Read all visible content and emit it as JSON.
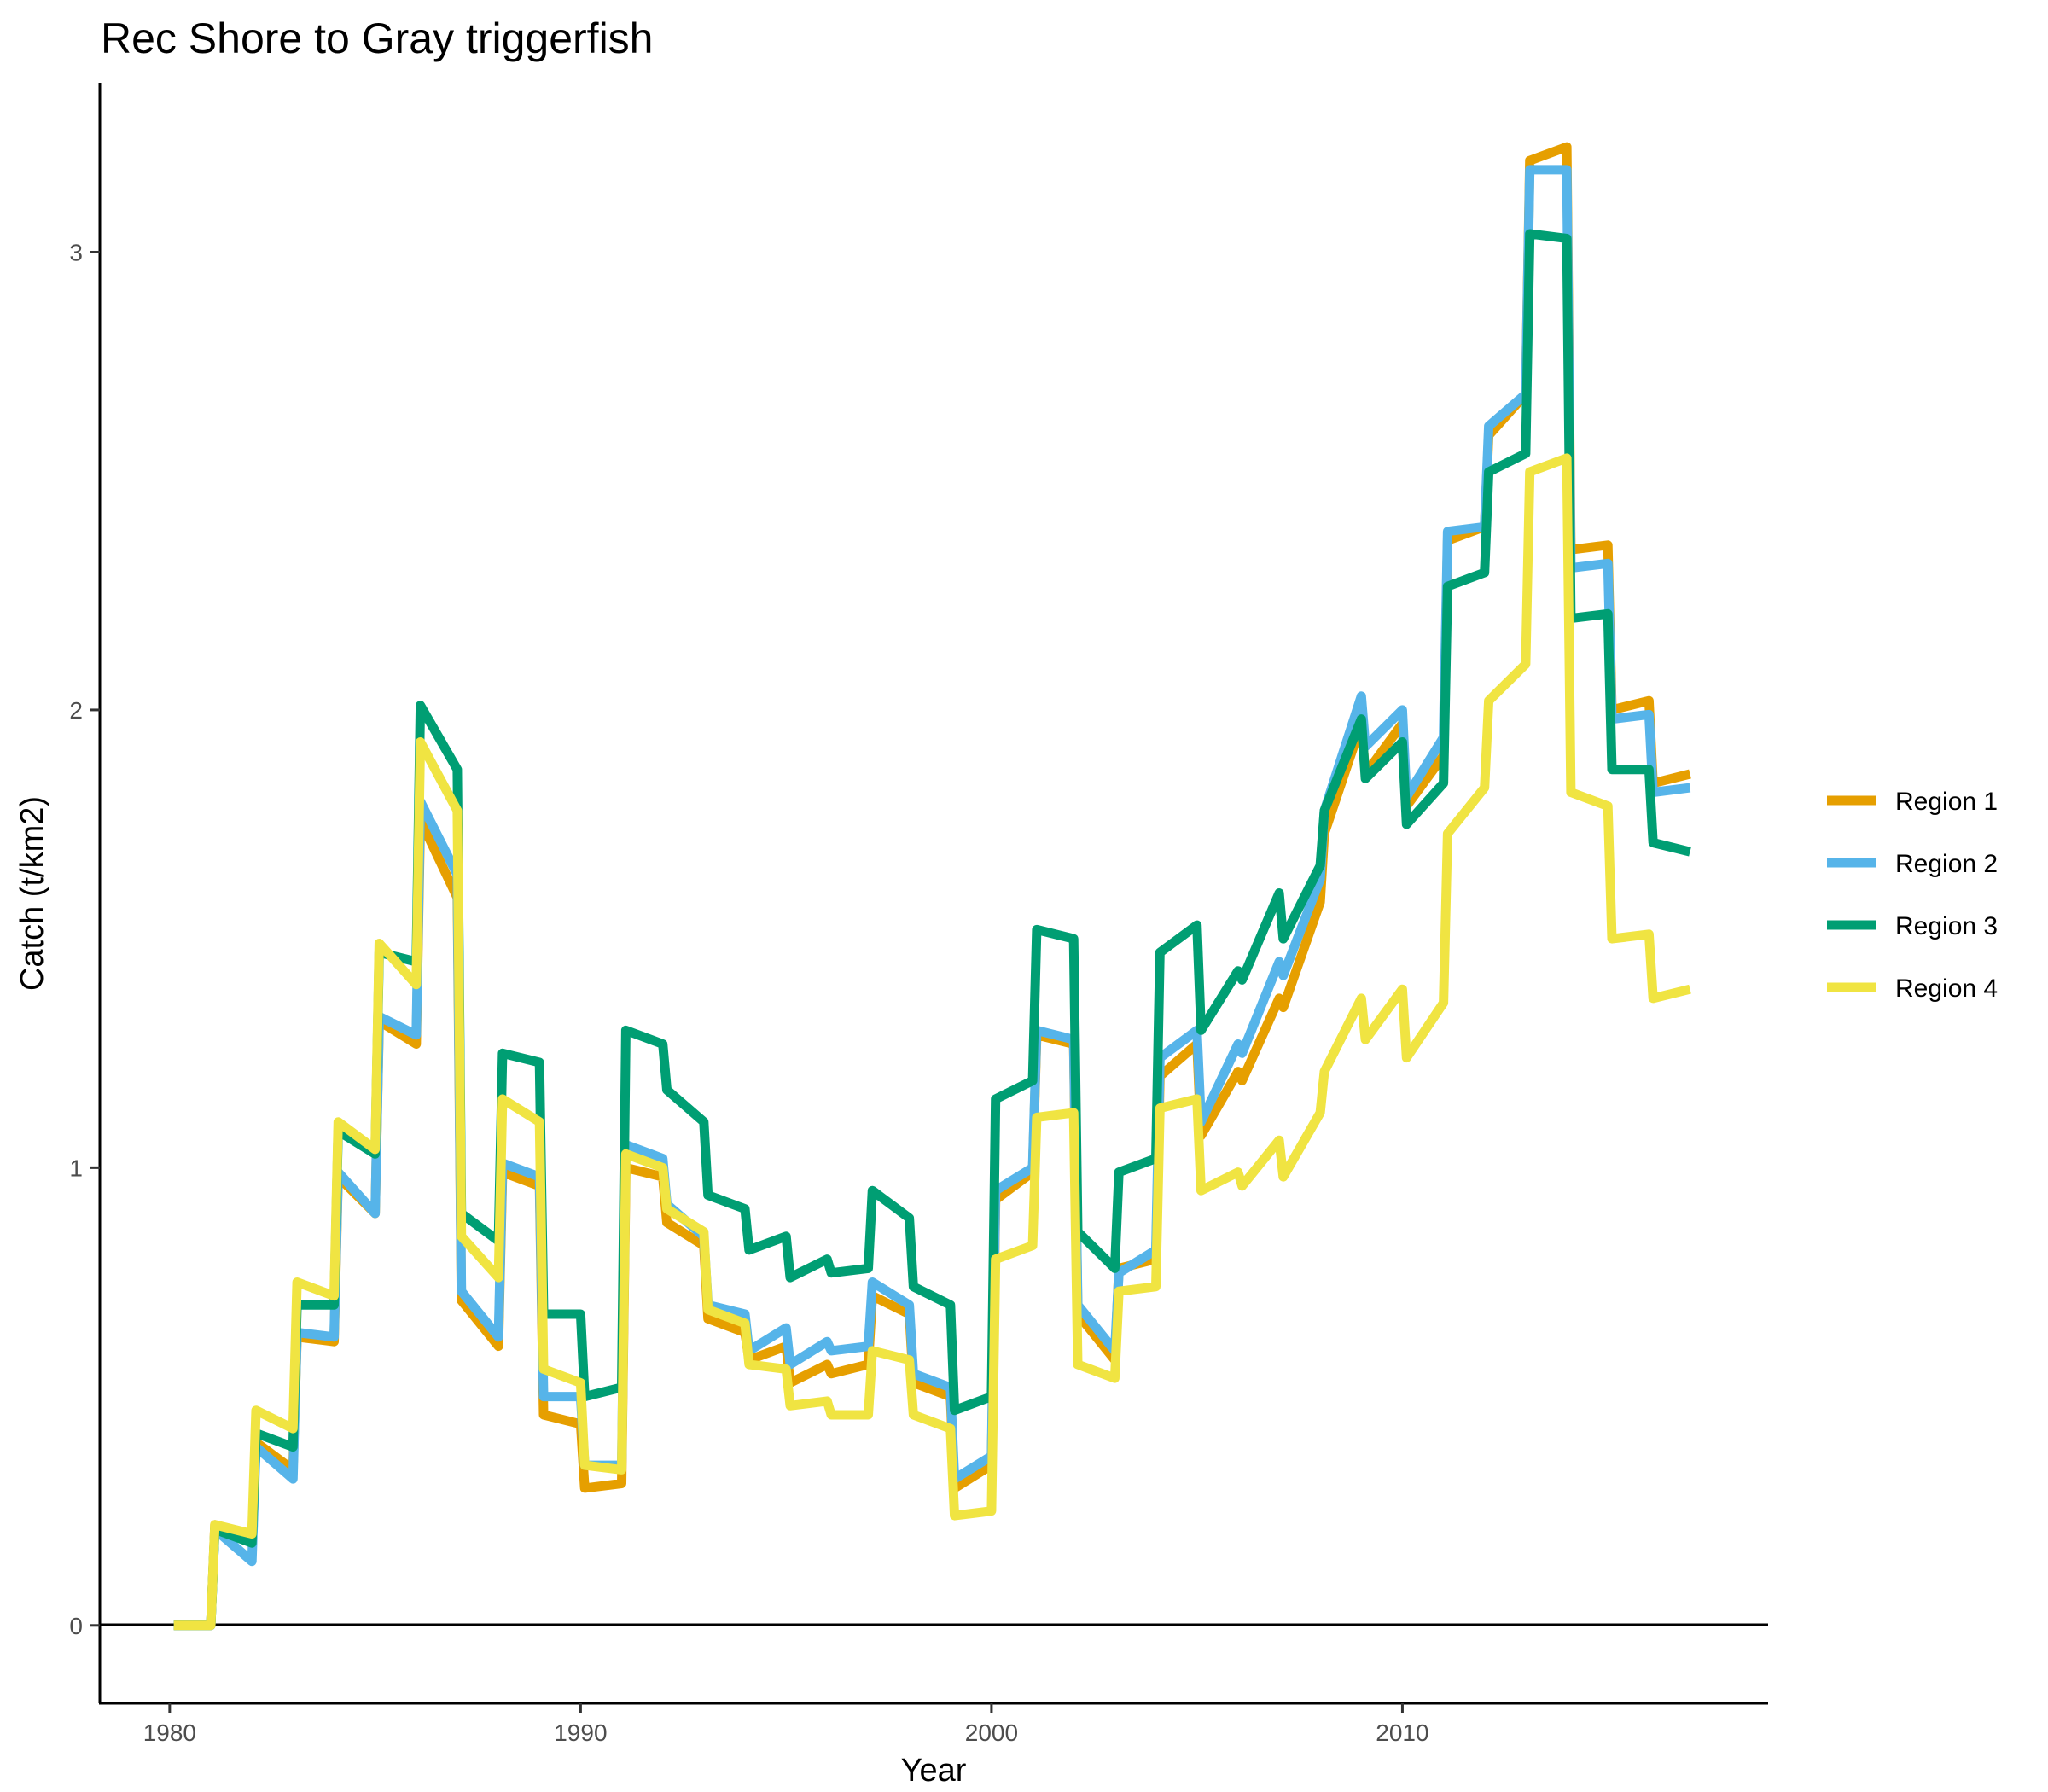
{
  "chart_data": {
    "type": "line",
    "title": "Rec Shore to Gray triggerfish",
    "xlabel": "Year",
    "ylabel": "Catch (t/km2)",
    "xlim": [
      1978.3,
      2018.9
    ],
    "ylim": [
      -0.17,
      3.37
    ],
    "x_ticks": [
      1980,
      1990,
      2000,
      2010
    ],
    "y_ticks": [
      0,
      1,
      2,
      3
    ],
    "x_tick_labels": [
      "1980",
      "1990",
      "2000",
      "2010"
    ],
    "y_tick_labels": [
      "0",
      "1",
      "2",
      "3"
    ],
    "hline": 0,
    "grid": false,
    "legend_position": "right",
    "series": [
      {
        "name": "Region 1",
        "color": "#E69F00",
        "points": [
          [
            1980.1,
            0
          ],
          [
            1981,
            0
          ],
          [
            1981.1,
            0.22
          ],
          [
            1982,
            0.19
          ],
          [
            1982.1,
            0.4
          ],
          [
            1983,
            0.34
          ],
          [
            1983.1,
            0.63
          ],
          [
            1984,
            0.62
          ],
          [
            1984.1,
            0.98
          ],
          [
            1985,
            0.9
          ],
          [
            1985.1,
            1.32
          ],
          [
            1986,
            1.27
          ],
          [
            1986.1,
            1.76
          ],
          [
            1987,
            1.59
          ],
          [
            1987.1,
            0.71
          ],
          [
            1988,
            0.61
          ],
          [
            1988.1,
            0.99
          ],
          [
            1989,
            0.96
          ],
          [
            1989.1,
            0.46
          ],
          [
            1990,
            0.44
          ],
          [
            1990.1,
            0.3
          ],
          [
            1991,
            0.31
          ],
          [
            1991.1,
            1.0
          ],
          [
            1992,
            0.98
          ],
          [
            1992.1,
            0.88
          ],
          [
            1993,
            0.83
          ],
          [
            1993.1,
            0.67
          ],
          [
            1994,
            0.64
          ],
          [
            1994.1,
            0.58
          ],
          [
            1995,
            0.61
          ],
          [
            1995.1,
            0.53
          ],
          [
            1996,
            0.57
          ],
          [
            1996.1,
            0.55
          ],
          [
            1997,
            0.57
          ],
          [
            1997.1,
            0.72
          ],
          [
            1998,
            0.68
          ],
          [
            1998.1,
            0.53
          ],
          [
            1999,
            0.5
          ],
          [
            1999.1,
            0.3
          ],
          [
            2000,
            0.35
          ],
          [
            2000.1,
            0.93
          ],
          [
            2001,
            0.99
          ],
          [
            2001.1,
            1.29
          ],
          [
            2002,
            1.27
          ],
          [
            2002.1,
            0.68
          ],
          [
            2003,
            0.58
          ],
          [
            2003.1,
            0.78
          ],
          [
            2004,
            0.8
          ],
          [
            2004.1,
            1.2
          ],
          [
            2005,
            1.27
          ],
          [
            2005.1,
            1.07
          ],
          [
            2006,
            1.21
          ],
          [
            2006.1,
            1.19
          ],
          [
            2007,
            1.37
          ],
          [
            2007.1,
            1.35
          ],
          [
            2008,
            1.58
          ],
          [
            2008.1,
            1.73
          ],
          [
            2009,
            1.97
          ],
          [
            2009.1,
            1.86
          ],
          [
            2010,
            1.97
          ],
          [
            2010.1,
            1.79
          ],
          [
            2011,
            1.9
          ],
          [
            2011.1,
            2.37
          ],
          [
            2012,
            2.4
          ],
          [
            2012.1,
            2.6
          ],
          [
            2013,
            2.69
          ],
          [
            2013.1,
            3.2
          ],
          [
            2014,
            3.23
          ],
          [
            2014.1,
            2.35
          ],
          [
            2015,
            2.36
          ],
          [
            2015.1,
            2.0
          ],
          [
            2016,
            2.02
          ],
          [
            2016.1,
            1.84
          ],
          [
            2017,
            1.86
          ]
        ]
      },
      {
        "name": "Region 2",
        "color": "#56B4E9",
        "points": [
          [
            1980.1,
            0
          ],
          [
            1981,
            0
          ],
          [
            1981.1,
            0.21
          ],
          [
            1982,
            0.14
          ],
          [
            1982.1,
            0.39
          ],
          [
            1983,
            0.32
          ],
          [
            1983.1,
            0.64
          ],
          [
            1984,
            0.63
          ],
          [
            1984.1,
            0.99
          ],
          [
            1985,
            0.9
          ],
          [
            1985.1,
            1.33
          ],
          [
            1986,
            1.29
          ],
          [
            1986.1,
            1.8
          ],
          [
            1987,
            1.64
          ],
          [
            1987.1,
            0.73
          ],
          [
            1988,
            0.63
          ],
          [
            1988.1,
            1.01
          ],
          [
            1989,
            0.98
          ],
          [
            1989.1,
            0.5
          ],
          [
            1990,
            0.5
          ],
          [
            1990.1,
            0.35
          ],
          [
            1991,
            0.35
          ],
          [
            1991.1,
            1.05
          ],
          [
            1992,
            1.02
          ],
          [
            1992.1,
            0.92
          ],
          [
            1993,
            0.85
          ],
          [
            1993.1,
            0.7
          ],
          [
            1994,
            0.68
          ],
          [
            1994.1,
            0.6
          ],
          [
            1995,
            0.65
          ],
          [
            1995.1,
            0.57
          ],
          [
            1996,
            0.62
          ],
          [
            1996.1,
            0.6
          ],
          [
            1997,
            0.61
          ],
          [
            1997.1,
            0.75
          ],
          [
            1998,
            0.7
          ],
          [
            1998.1,
            0.55
          ],
          [
            1999,
            0.52
          ],
          [
            1999.1,
            0.32
          ],
          [
            2000,
            0.37
          ],
          [
            2000.1,
            0.95
          ],
          [
            2001,
            1.0
          ],
          [
            2001.1,
            1.3
          ],
          [
            2002,
            1.28
          ],
          [
            2002.1,
            0.7
          ],
          [
            2003,
            0.6
          ],
          [
            2003.1,
            0.77
          ],
          [
            2004,
            0.82
          ],
          [
            2004.1,
            1.24
          ],
          [
            2005,
            1.3
          ],
          [
            2005.1,
            1.1
          ],
          [
            2006,
            1.27
          ],
          [
            2006.1,
            1.25
          ],
          [
            2007,
            1.45
          ],
          [
            2007.1,
            1.42
          ],
          [
            2008,
            1.63
          ],
          [
            2008.1,
            1.78
          ],
          [
            2009,
            2.03
          ],
          [
            2009.1,
            1.92
          ],
          [
            2010,
            2.0
          ],
          [
            2010.1,
            1.81
          ],
          [
            2011,
            1.94
          ],
          [
            2011.1,
            2.39
          ],
          [
            2012,
            2.4
          ],
          [
            2012.1,
            2.62
          ],
          [
            2013,
            2.69
          ],
          [
            2013.1,
            3.18
          ],
          [
            2014,
            3.18
          ],
          [
            2014.1,
            2.31
          ],
          [
            2015,
            2.32
          ],
          [
            2015.1,
            1.98
          ],
          [
            2016,
            1.99
          ],
          [
            2016.1,
            1.82
          ],
          [
            2017,
            1.83
          ]
        ]
      },
      {
        "name": "Region 3",
        "color": "#009E73",
        "points": [
          [
            1980.1,
            0
          ],
          [
            1981,
            0
          ],
          [
            1981.1,
            0.21
          ],
          [
            1982,
            0.18
          ],
          [
            1982.1,
            0.42
          ],
          [
            1983,
            0.39
          ],
          [
            1983.1,
            0.7
          ],
          [
            1984,
            0.7
          ],
          [
            1984.1,
            1.08
          ],
          [
            1985,
            1.03
          ],
          [
            1985.1,
            1.47
          ],
          [
            1986,
            1.45
          ],
          [
            1986.1,
            2.01
          ],
          [
            1987,
            1.87
          ],
          [
            1987.1,
            0.9
          ],
          [
            1988,
            0.84
          ],
          [
            1988.1,
            1.25
          ],
          [
            1989,
            1.23
          ],
          [
            1989.1,
            0.68
          ],
          [
            1990,
            0.68
          ],
          [
            1990.1,
            0.5
          ],
          [
            1991,
            0.52
          ],
          [
            1991.1,
            1.3
          ],
          [
            1992,
            1.27
          ],
          [
            1992.1,
            1.17
          ],
          [
            1993,
            1.1
          ],
          [
            1993.1,
            0.94
          ],
          [
            1994,
            0.91
          ],
          [
            1994.1,
            0.82
          ],
          [
            1995,
            0.85
          ],
          [
            1995.1,
            0.76
          ],
          [
            1996,
            0.8
          ],
          [
            1996.1,
            0.77
          ],
          [
            1997,
            0.78
          ],
          [
            1997.1,
            0.95
          ],
          [
            1998,
            0.89
          ],
          [
            1998.1,
            0.74
          ],
          [
            1999,
            0.7
          ],
          [
            1999.1,
            0.47
          ],
          [
            2000,
            0.5
          ],
          [
            2000.1,
            1.15
          ],
          [
            2001,
            1.19
          ],
          [
            2001.1,
            1.52
          ],
          [
            2002,
            1.5
          ],
          [
            2002.1,
            0.86
          ],
          [
            2003,
            0.78
          ],
          [
            2003.1,
            0.99
          ],
          [
            2004,
            1.02
          ],
          [
            2004.1,
            1.47
          ],
          [
            2005,
            1.53
          ],
          [
            2005.1,
            1.3
          ],
          [
            2006,
            1.43
          ],
          [
            2006.1,
            1.41
          ],
          [
            2007,
            1.6
          ],
          [
            2007.1,
            1.5
          ],
          [
            2008,
            1.66
          ],
          [
            2008.1,
            1.78
          ],
          [
            2009,
            1.98
          ],
          [
            2009.1,
            1.85
          ],
          [
            2010,
            1.93
          ],
          [
            2010.1,
            1.75
          ],
          [
            2011,
            1.84
          ],
          [
            2011.1,
            2.27
          ],
          [
            2012,
            2.3
          ],
          [
            2012.1,
            2.52
          ],
          [
            2013,
            2.56
          ],
          [
            2013.1,
            3.04
          ],
          [
            2014,
            3.03
          ],
          [
            2014.1,
            2.2
          ],
          [
            2015,
            2.21
          ],
          [
            2015.1,
            1.87
          ],
          [
            2016,
            1.87
          ],
          [
            2016.1,
            1.71
          ],
          [
            2017,
            1.69
          ]
        ]
      },
      {
        "name": "Region 4",
        "color": "#F0E442",
        "points": [
          [
            1980.1,
            0
          ],
          [
            1981,
            0
          ],
          [
            1981.1,
            0.22
          ],
          [
            1982,
            0.2
          ],
          [
            1982.1,
            0.47
          ],
          [
            1983,
            0.43
          ],
          [
            1983.1,
            0.75
          ],
          [
            1984,
            0.72
          ],
          [
            1984.1,
            1.1
          ],
          [
            1985,
            1.04
          ],
          [
            1985.1,
            1.49
          ],
          [
            1986,
            1.4
          ],
          [
            1986.1,
            1.93
          ],
          [
            1987,
            1.78
          ],
          [
            1987.1,
            0.85
          ],
          [
            1988,
            0.76
          ],
          [
            1988.1,
            1.15
          ],
          [
            1989,
            1.1
          ],
          [
            1989.1,
            0.56
          ],
          [
            1990,
            0.53
          ],
          [
            1990.1,
            0.35
          ],
          [
            1991,
            0.34
          ],
          [
            1991.1,
            1.03
          ],
          [
            1992,
            1.0
          ],
          [
            1992.1,
            0.91
          ],
          [
            1993,
            0.86
          ],
          [
            1993.1,
            0.69
          ],
          [
            1994,
            0.66
          ],
          [
            1994.1,
            0.57
          ],
          [
            1995,
            0.56
          ],
          [
            1995.1,
            0.48
          ],
          [
            1996,
            0.49
          ],
          [
            1996.1,
            0.46
          ],
          [
            1997,
            0.46
          ],
          [
            1997.1,
            0.6
          ],
          [
            1998,
            0.58
          ],
          [
            1998.1,
            0.46
          ],
          [
            1999,
            0.43
          ],
          [
            1999.1,
            0.24
          ],
          [
            2000,
            0.25
          ],
          [
            2000.1,
            0.8
          ],
          [
            2001,
            0.83
          ],
          [
            2001.1,
            1.11
          ],
          [
            2002,
            1.12
          ],
          [
            2002.1,
            0.57
          ],
          [
            2003,
            0.54
          ],
          [
            2003.1,
            0.73
          ],
          [
            2004,
            0.74
          ],
          [
            2004.1,
            1.13
          ],
          [
            2005,
            1.15
          ],
          [
            2005.1,
            0.95
          ],
          [
            2006,
            0.99
          ],
          [
            2006.1,
            0.96
          ],
          [
            2007,
            1.06
          ],
          [
            2007.1,
            0.98
          ],
          [
            2008,
            1.12
          ],
          [
            2008.1,
            1.21
          ],
          [
            2009,
            1.37
          ],
          [
            2009.1,
            1.28
          ],
          [
            2010,
            1.39
          ],
          [
            2010.1,
            1.24
          ],
          [
            2011,
            1.36
          ],
          [
            2011.1,
            1.73
          ],
          [
            2012,
            1.83
          ],
          [
            2012.1,
            2.02
          ],
          [
            2013,
            2.1
          ],
          [
            2013.1,
            2.52
          ],
          [
            2014,
            2.55
          ],
          [
            2014.1,
            1.82
          ],
          [
            2015,
            1.79
          ],
          [
            2015.1,
            1.5
          ],
          [
            2016,
            1.51
          ],
          [
            2016.1,
            1.37
          ],
          [
            2017,
            1.39
          ]
        ]
      }
    ]
  }
}
